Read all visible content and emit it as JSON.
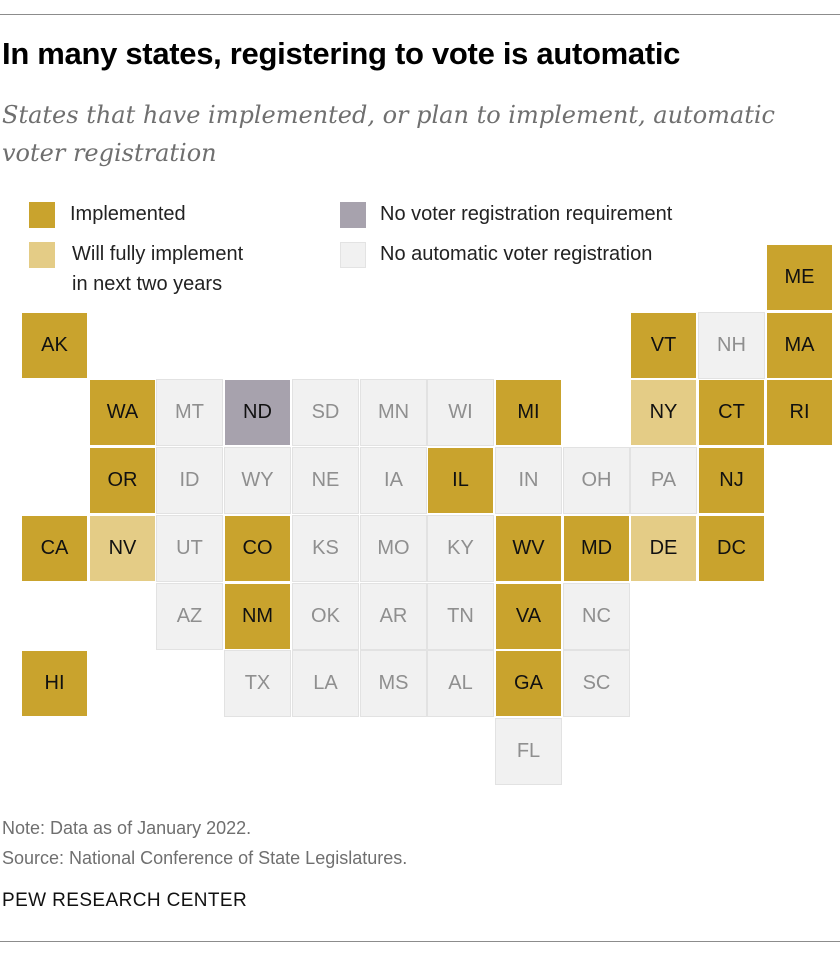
{
  "chart_data": {
    "type": "tile-map",
    "title": "In many states, registering to vote is automatic",
    "subtitle": "States that have implemented, or plan to implement, automatic voter registration",
    "legend": [
      {
        "key": "implemented",
        "label": "Implemented"
      },
      {
        "key": "no_requirement",
        "label": "No voter registration requirement"
      },
      {
        "key": "will_implement",
        "label_line1": "Will fully implement",
        "label_line2": "in next two years"
      },
      {
        "key": "no_avr",
        "label": "No automatic voter registration"
      }
    ],
    "colors": {
      "implemented": "#c9a32d",
      "will_implement": "#e4cc86",
      "no_requirement": "#a7a2ad",
      "no_avr": "#f1f1f1"
    },
    "states": [
      {
        "abbr": "ME",
        "col": 11,
        "row": 0,
        "status": "implemented"
      },
      {
        "abbr": "AK",
        "col": 0,
        "row": 1,
        "status": "implemented"
      },
      {
        "abbr": "VT",
        "col": 9,
        "row": 1,
        "status": "implemented"
      },
      {
        "abbr": "NH",
        "col": 10,
        "row": 1,
        "status": "no_avr"
      },
      {
        "abbr": "MA",
        "col": 11,
        "row": 1,
        "status": "implemented"
      },
      {
        "abbr": "WA",
        "col": 1,
        "row": 2,
        "status": "implemented"
      },
      {
        "abbr": "MT",
        "col": 2,
        "row": 2,
        "status": "no_avr"
      },
      {
        "abbr": "ND",
        "col": 3,
        "row": 2,
        "status": "no_requirement"
      },
      {
        "abbr": "SD",
        "col": 4,
        "row": 2,
        "status": "no_avr"
      },
      {
        "abbr": "MN",
        "col": 5,
        "row": 2,
        "status": "no_avr"
      },
      {
        "abbr": "WI",
        "col": 6,
        "row": 2,
        "status": "no_avr"
      },
      {
        "abbr": "MI",
        "col": 7,
        "row": 2,
        "status": "implemented"
      },
      {
        "abbr": "NY",
        "col": 9,
        "row": 2,
        "status": "will_implement"
      },
      {
        "abbr": "CT",
        "col": 10,
        "row": 2,
        "status": "implemented"
      },
      {
        "abbr": "RI",
        "col": 11,
        "row": 2,
        "status": "implemented"
      },
      {
        "abbr": "OR",
        "col": 1,
        "row": 3,
        "status": "implemented"
      },
      {
        "abbr": "ID",
        "col": 2,
        "row": 3,
        "status": "no_avr"
      },
      {
        "abbr": "WY",
        "col": 3,
        "row": 3,
        "status": "no_avr"
      },
      {
        "abbr": "NE",
        "col": 4,
        "row": 3,
        "status": "no_avr"
      },
      {
        "abbr": "IA",
        "col": 5,
        "row": 3,
        "status": "no_avr"
      },
      {
        "abbr": "IL",
        "col": 6,
        "row": 3,
        "status": "implemented"
      },
      {
        "abbr": "IN",
        "col": 7,
        "row": 3,
        "status": "no_avr"
      },
      {
        "abbr": "OH",
        "col": 8,
        "row": 3,
        "status": "no_avr"
      },
      {
        "abbr": "PA",
        "col": 9,
        "row": 3,
        "status": "no_avr"
      },
      {
        "abbr": "NJ",
        "col": 10,
        "row": 3,
        "status": "implemented"
      },
      {
        "abbr": "CA",
        "col": 0,
        "row": 4,
        "status": "implemented"
      },
      {
        "abbr": "NV",
        "col": 1,
        "row": 4,
        "status": "will_implement"
      },
      {
        "abbr": "UT",
        "col": 2,
        "row": 4,
        "status": "no_avr"
      },
      {
        "abbr": "CO",
        "col": 3,
        "row": 4,
        "status": "implemented"
      },
      {
        "abbr": "KS",
        "col": 4,
        "row": 4,
        "status": "no_avr"
      },
      {
        "abbr": "MO",
        "col": 5,
        "row": 4,
        "status": "no_avr"
      },
      {
        "abbr": "KY",
        "col": 6,
        "row": 4,
        "status": "no_avr"
      },
      {
        "abbr": "WV",
        "col": 7,
        "row": 4,
        "status": "implemented"
      },
      {
        "abbr": "MD",
        "col": 8,
        "row": 4,
        "status": "implemented"
      },
      {
        "abbr": "DE",
        "col": 9,
        "row": 4,
        "status": "will_implement"
      },
      {
        "abbr": "DC",
        "col": 10,
        "row": 4,
        "status": "implemented"
      },
      {
        "abbr": "AZ",
        "col": 2,
        "row": 5,
        "status": "no_avr"
      },
      {
        "abbr": "NM",
        "col": 3,
        "row": 5,
        "status": "implemented"
      },
      {
        "abbr": "OK",
        "col": 4,
        "row": 5,
        "status": "no_avr"
      },
      {
        "abbr": "AR",
        "col": 5,
        "row": 5,
        "status": "no_avr"
      },
      {
        "abbr": "TN",
        "col": 6,
        "row": 5,
        "status": "no_avr"
      },
      {
        "abbr": "VA",
        "col": 7,
        "row": 5,
        "status": "implemented"
      },
      {
        "abbr": "NC",
        "col": 8,
        "row": 5,
        "status": "no_avr"
      },
      {
        "abbr": "HI",
        "col": 0,
        "row": 6,
        "status": "implemented"
      },
      {
        "abbr": "TX",
        "col": 3,
        "row": 6,
        "status": "no_avr"
      },
      {
        "abbr": "LA",
        "col": 4,
        "row": 6,
        "status": "no_avr"
      },
      {
        "abbr": "MS",
        "col": 5,
        "row": 6,
        "status": "no_avr"
      },
      {
        "abbr": "AL",
        "col": 6,
        "row": 6,
        "status": "no_avr"
      },
      {
        "abbr": "GA",
        "col": 7,
        "row": 6,
        "status": "implemented"
      },
      {
        "abbr": "SC",
        "col": 8,
        "row": 6,
        "status": "no_avr"
      },
      {
        "abbr": "FL",
        "col": 7,
        "row": 7,
        "status": "no_avr"
      }
    ]
  },
  "footer": {
    "note": "Note: Data as of January 2022.",
    "source": "Source: National Conference of State Legislatures.",
    "organization": "PEW RESEARCH CENTER"
  }
}
